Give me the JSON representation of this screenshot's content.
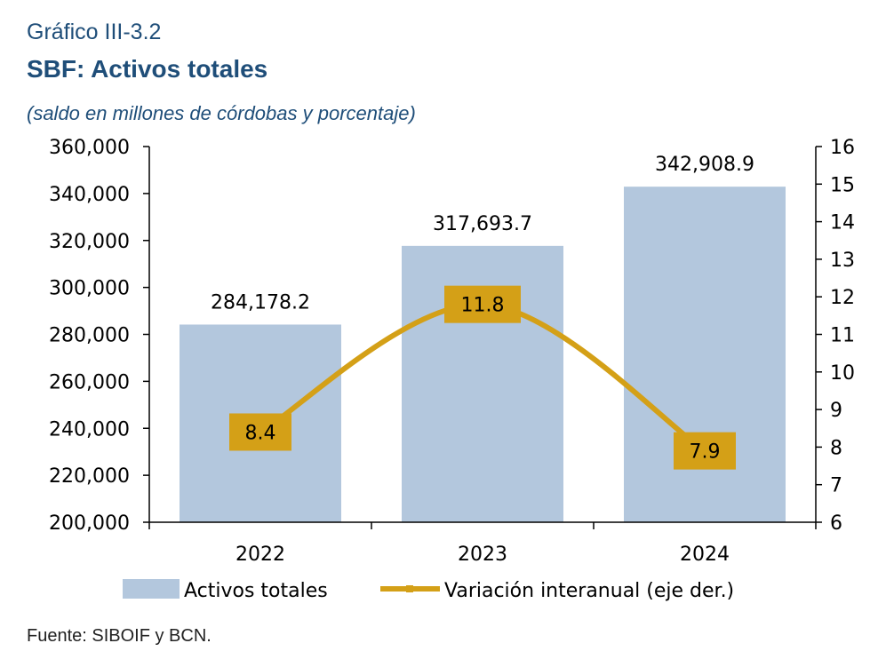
{
  "header": {
    "kicker": "Gráfico III-3.2",
    "title": "SBF: Activos totales",
    "subtitle": "(saldo en millones de córdobas y porcentaje)"
  },
  "footer": {
    "source": "Fuente: SIBOIF y BCN."
  },
  "chart_data": {
    "type": "bar",
    "categories": [
      "2022",
      "2023",
      "2024"
    ],
    "series": [
      {
        "name": "Activos totales",
        "type": "bar",
        "axis": "left",
        "values": [
          284178.2,
          317693.7,
          342908.9
        ],
        "labels": [
          "284,178.2",
          "317,693.7",
          "342,908.9"
        ],
        "color": "#b3c7dd"
      },
      {
        "name": "Variación interanual (eje der.)",
        "type": "line",
        "axis": "right",
        "values": [
          8.4,
          11.8,
          7.9
        ],
        "labels": [
          "8.4",
          "11.8",
          "7.9"
        ],
        "color": "#d4a017"
      }
    ],
    "y_left": {
      "min": 200000,
      "max": 360000,
      "ticks": [
        "200,000",
        "220,000",
        "240,000",
        "260,000",
        "280,000",
        "300,000",
        "320,000",
        "340,000",
        "360,000"
      ]
    },
    "y_right": {
      "min": 6,
      "max": 16,
      "ticks": [
        "6",
        "7",
        "8",
        "9",
        "10",
        "11",
        "12",
        "13",
        "14",
        "15",
        "16"
      ]
    },
    "legend": {
      "position": "bottom",
      "items": [
        "Activos totales",
        "Variación interanual (eje der.)"
      ]
    },
    "grid": false
  }
}
